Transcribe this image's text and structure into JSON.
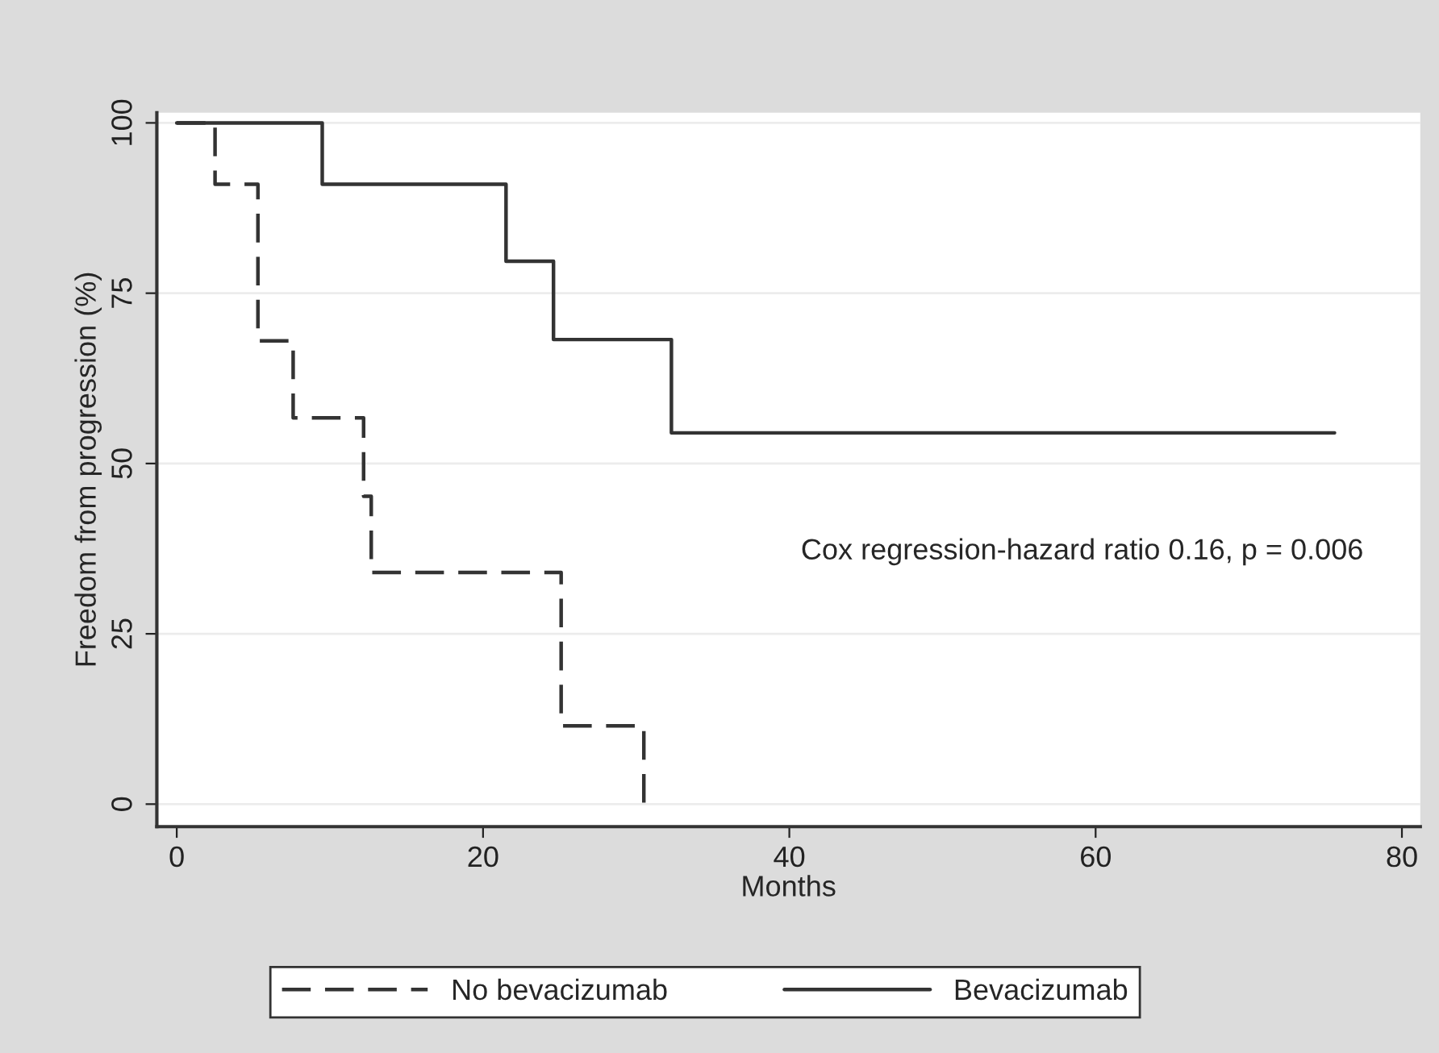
{
  "chart_data": {
    "type": "step",
    "xlabel": "Months",
    "ylabel": "Freedom from progression (%)",
    "xlim": [
      -1.3,
      81.2
    ],
    "ylim": [
      -3.3,
      101.5
    ],
    "xticks": [
      0,
      20,
      40,
      60,
      80
    ],
    "yticks": [
      0,
      25,
      50,
      75,
      100
    ],
    "grid": "y",
    "legend": "bottom",
    "marker": "none",
    "annotations": [
      "Cox regression-hazard ratio 0.16, p = 0.006"
    ],
    "series": [
      {
        "name": "No bevacizumab",
        "color": "#333333",
        "line_style": "dashed",
        "x": [
          0,
          2.5,
          5.3,
          7.6,
          12.2,
          12.7,
          25.1,
          30.5
        ],
        "values": [
          100,
          91,
          68,
          56.7,
          45.2,
          34,
          11.5,
          0
        ]
      },
      {
        "name": "Bevacizumab",
        "color": "#333333",
        "line_style": "solid",
        "x": [
          0,
          9.5,
          21.5,
          24.6,
          32.3,
          75.6
        ],
        "values": [
          100,
          91,
          79.7,
          68.2,
          54.5,
          54.5
        ]
      }
    ]
  }
}
